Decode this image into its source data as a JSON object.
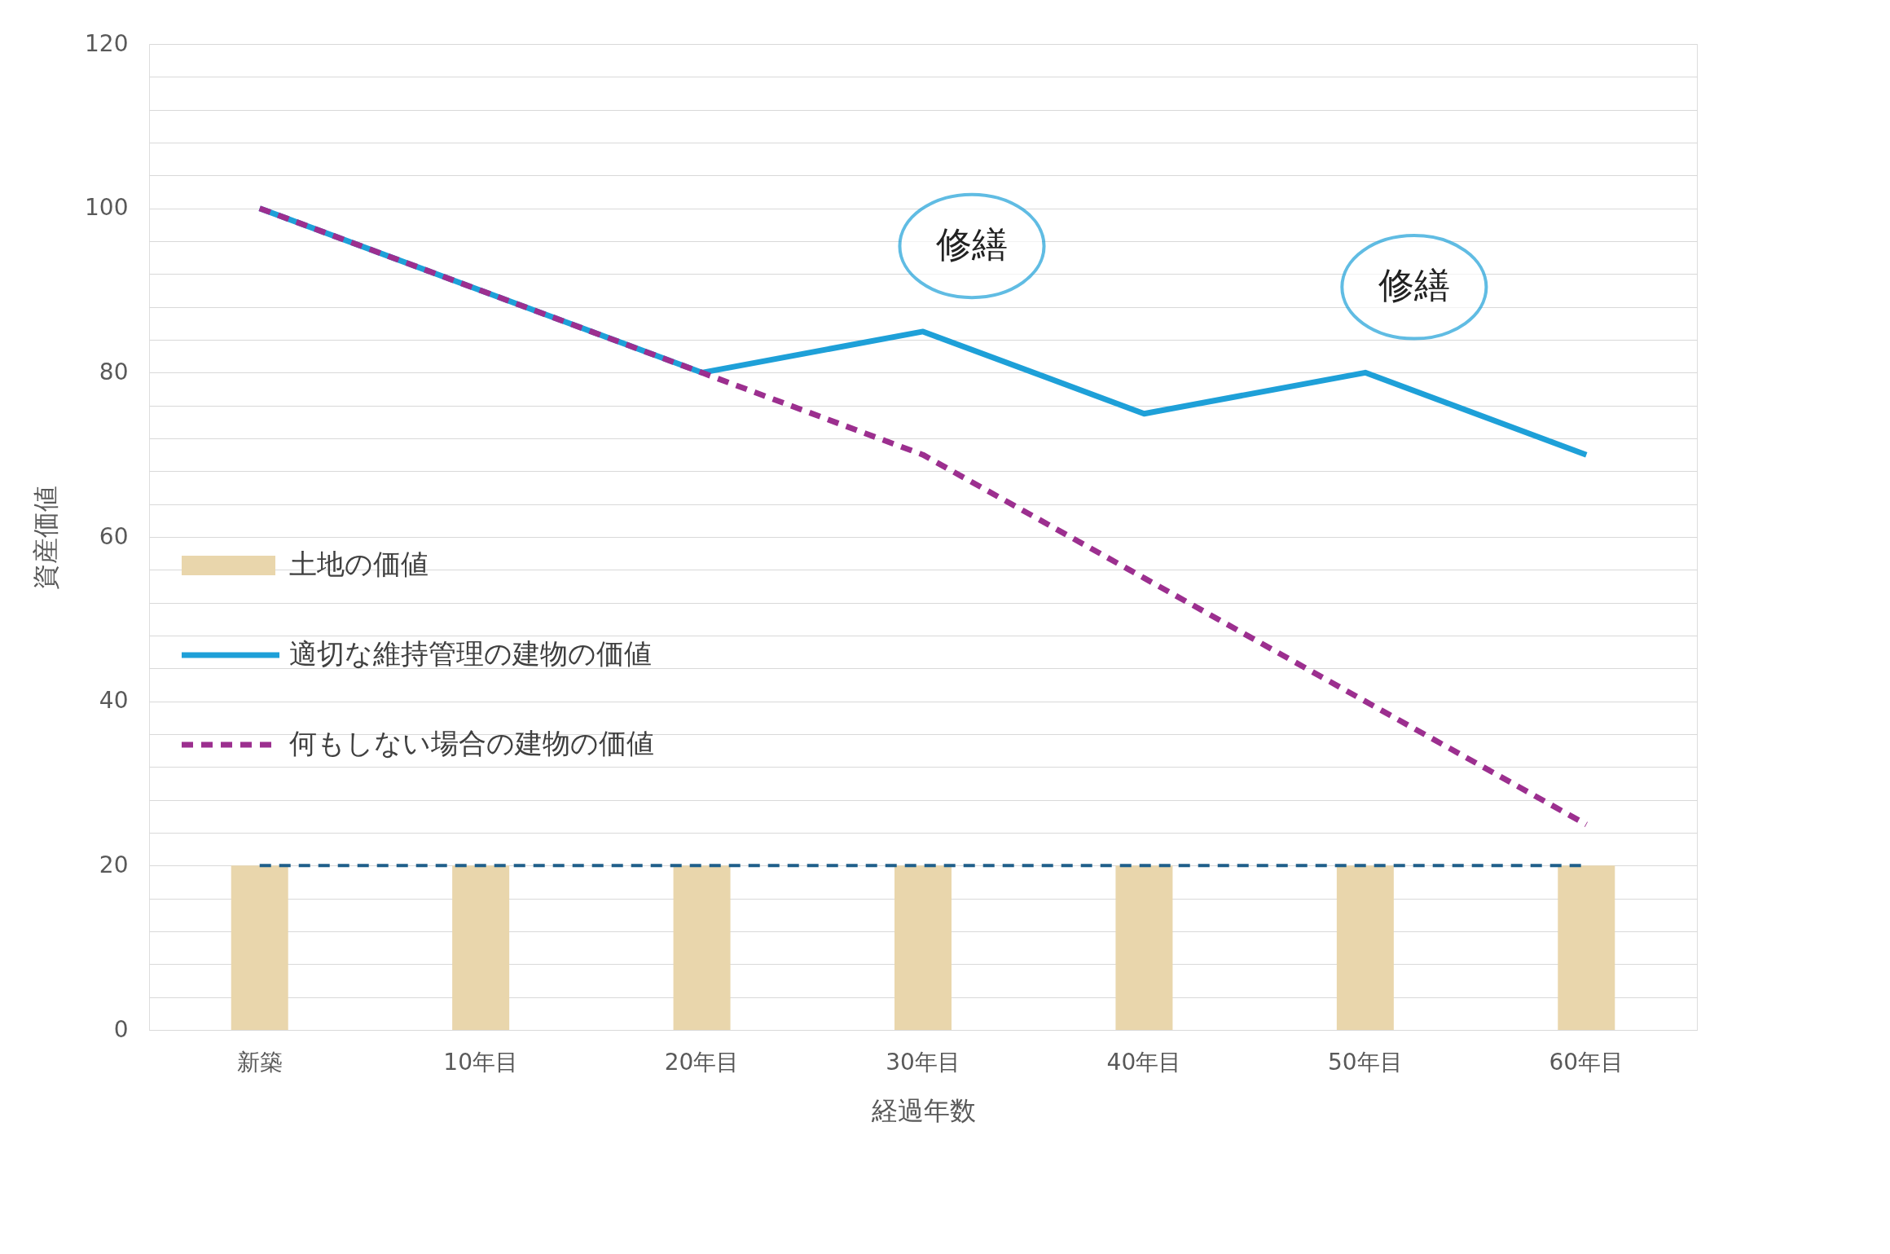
{
  "chart_data": {
    "type": "bar",
    "xlabel": "経過年数",
    "ylabel": "資産価値",
    "categories": [
      "新築",
      "10年目",
      "20年目",
      "30年目",
      "40年目",
      "50年目",
      "60年目"
    ],
    "series": [
      {
        "name": "土地の価値",
        "color": "#e9d6ac",
        "values": [
          20,
          20,
          20,
          20,
          20,
          20,
          20
        ]
      },
      {
        "name": "適切な維持管理の建物の価値",
        "type": "line",
        "color": "#1ea0d8",
        "line_style": "solid",
        "values": [
          100,
          90,
          80,
          85,
          75,
          80,
          70
        ]
      },
      {
        "name": "何もしない場合の建物の価値",
        "type": "line",
        "color": "#9c2f8f",
        "line_style": "dashed",
        "values": [
          100,
          90,
          80,
          70,
          55,
          40,
          25
        ]
      }
    ],
    "ref_lines": [
      {
        "axis": "y",
        "value": 20,
        "color": "#1f5f8a",
        "line_style": "dashed"
      }
    ],
    "annotations": [
      {
        "text": "修繕",
        "x": "30年目",
        "y": 85
      },
      {
        "text": "修繕",
        "x": "50年目",
        "y": 80
      }
    ],
    "ylim": [
      0,
      120
    ],
    "yticks": [
      0,
      {
        "value": 4,
        "label": null
      },
      {
        "value": 8,
        "label": null
      },
      {
        "value": 12,
        "label": null
      },
      {
        "value": 16,
        "label": null
      },
      20,
      {
        "value": 24,
        "label": null
      },
      {
        "value": 28,
        "label": null
      },
      {
        "value": 32,
        "label": null
      },
      {
        "value": 36,
        "label": null
      },
      40,
      {
        "value": 44,
        "label": null
      },
      {
        "value": 48,
        "label": null
      },
      {
        "value": 52,
        "label": null
      },
      {
        "value": 56,
        "label": null
      },
      60,
      {
        "value": 64,
        "label": null
      },
      {
        "value": 68,
        "label": null
      },
      {
        "value": 72,
        "label": null
      },
      {
        "value": 76,
        "label": null
      },
      80,
      {
        "value": 84,
        "label": null
      },
      {
        "value": 88,
        "label": null
      },
      {
        "value": 92,
        "label": null
      },
      {
        "value": 96,
        "label": null
      },
      100,
      {
        "value": 104,
        "label": null
      },
      {
        "value": 108,
        "label": null
      },
      {
        "value": 112,
        "label": null
      },
      {
        "value": 116,
        "label": null
      },
      120
    ],
    "grid": "y",
    "legend": "left"
  }
}
